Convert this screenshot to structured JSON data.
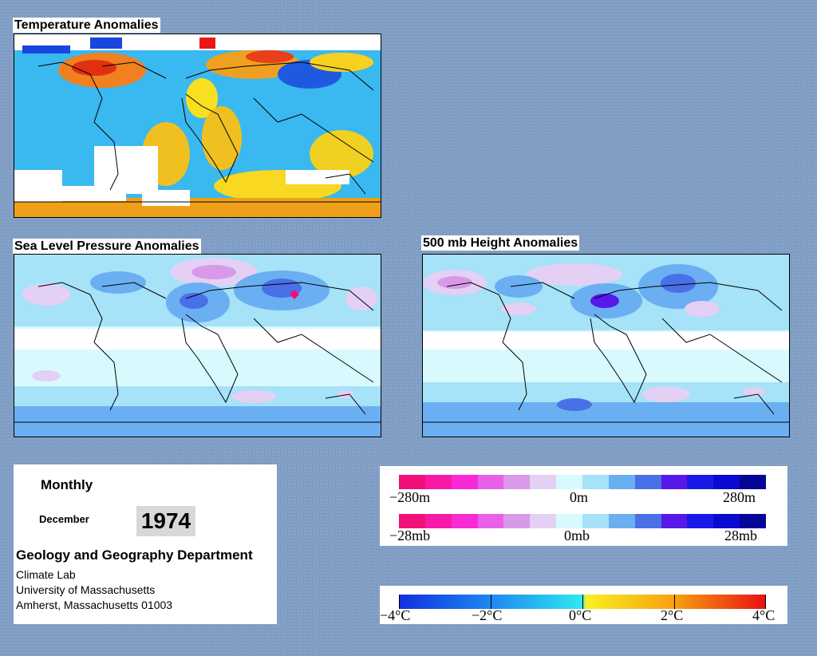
{
  "panels": {
    "temperature": {
      "title": "Temperature Anomalies"
    },
    "slp": {
      "title": "Sea Level Pressure Anomalies"
    },
    "height500": {
      "title": "500 mb Height Anomalies"
    }
  },
  "info": {
    "period": "Monthly",
    "month": "December",
    "year": "1974",
    "department": "Geology and Geography Department",
    "lab": "Climate Lab",
    "university": "University of Massachusetts",
    "address": "Amherst, Massachusetts 01003"
  },
  "legend_height": {
    "min": "−280m",
    "mid": "0m",
    "max": "280m",
    "colors": [
      "#f0107a",
      "#f81aa6",
      "#f82ad6",
      "#e860e8",
      "#d89ae8",
      "#e4d0f4",
      "#d8fafe",
      "#a6e2f8",
      "#6aaff2",
      "#4a70e8",
      "#5818e8",
      "#1a1ae8",
      "#0a0ad0",
      "#050598"
    ]
  },
  "legend_pressure": {
    "min": "−28mb",
    "mid": "0mb",
    "max": "28mb",
    "colors": [
      "#f0107a",
      "#f81aa6",
      "#f82ad6",
      "#e860e8",
      "#d89ae8",
      "#e4d0f4",
      "#d8fafe",
      "#a6e2f8",
      "#6aaff2",
      "#4a70e8",
      "#5818e8",
      "#1a1ae8",
      "#0a0ad0",
      "#050598"
    ]
  },
  "legend_temperature": {
    "labels": [
      "−4°C",
      "−2°C",
      "0°C",
      "2°C",
      "4°C"
    ]
  }
}
